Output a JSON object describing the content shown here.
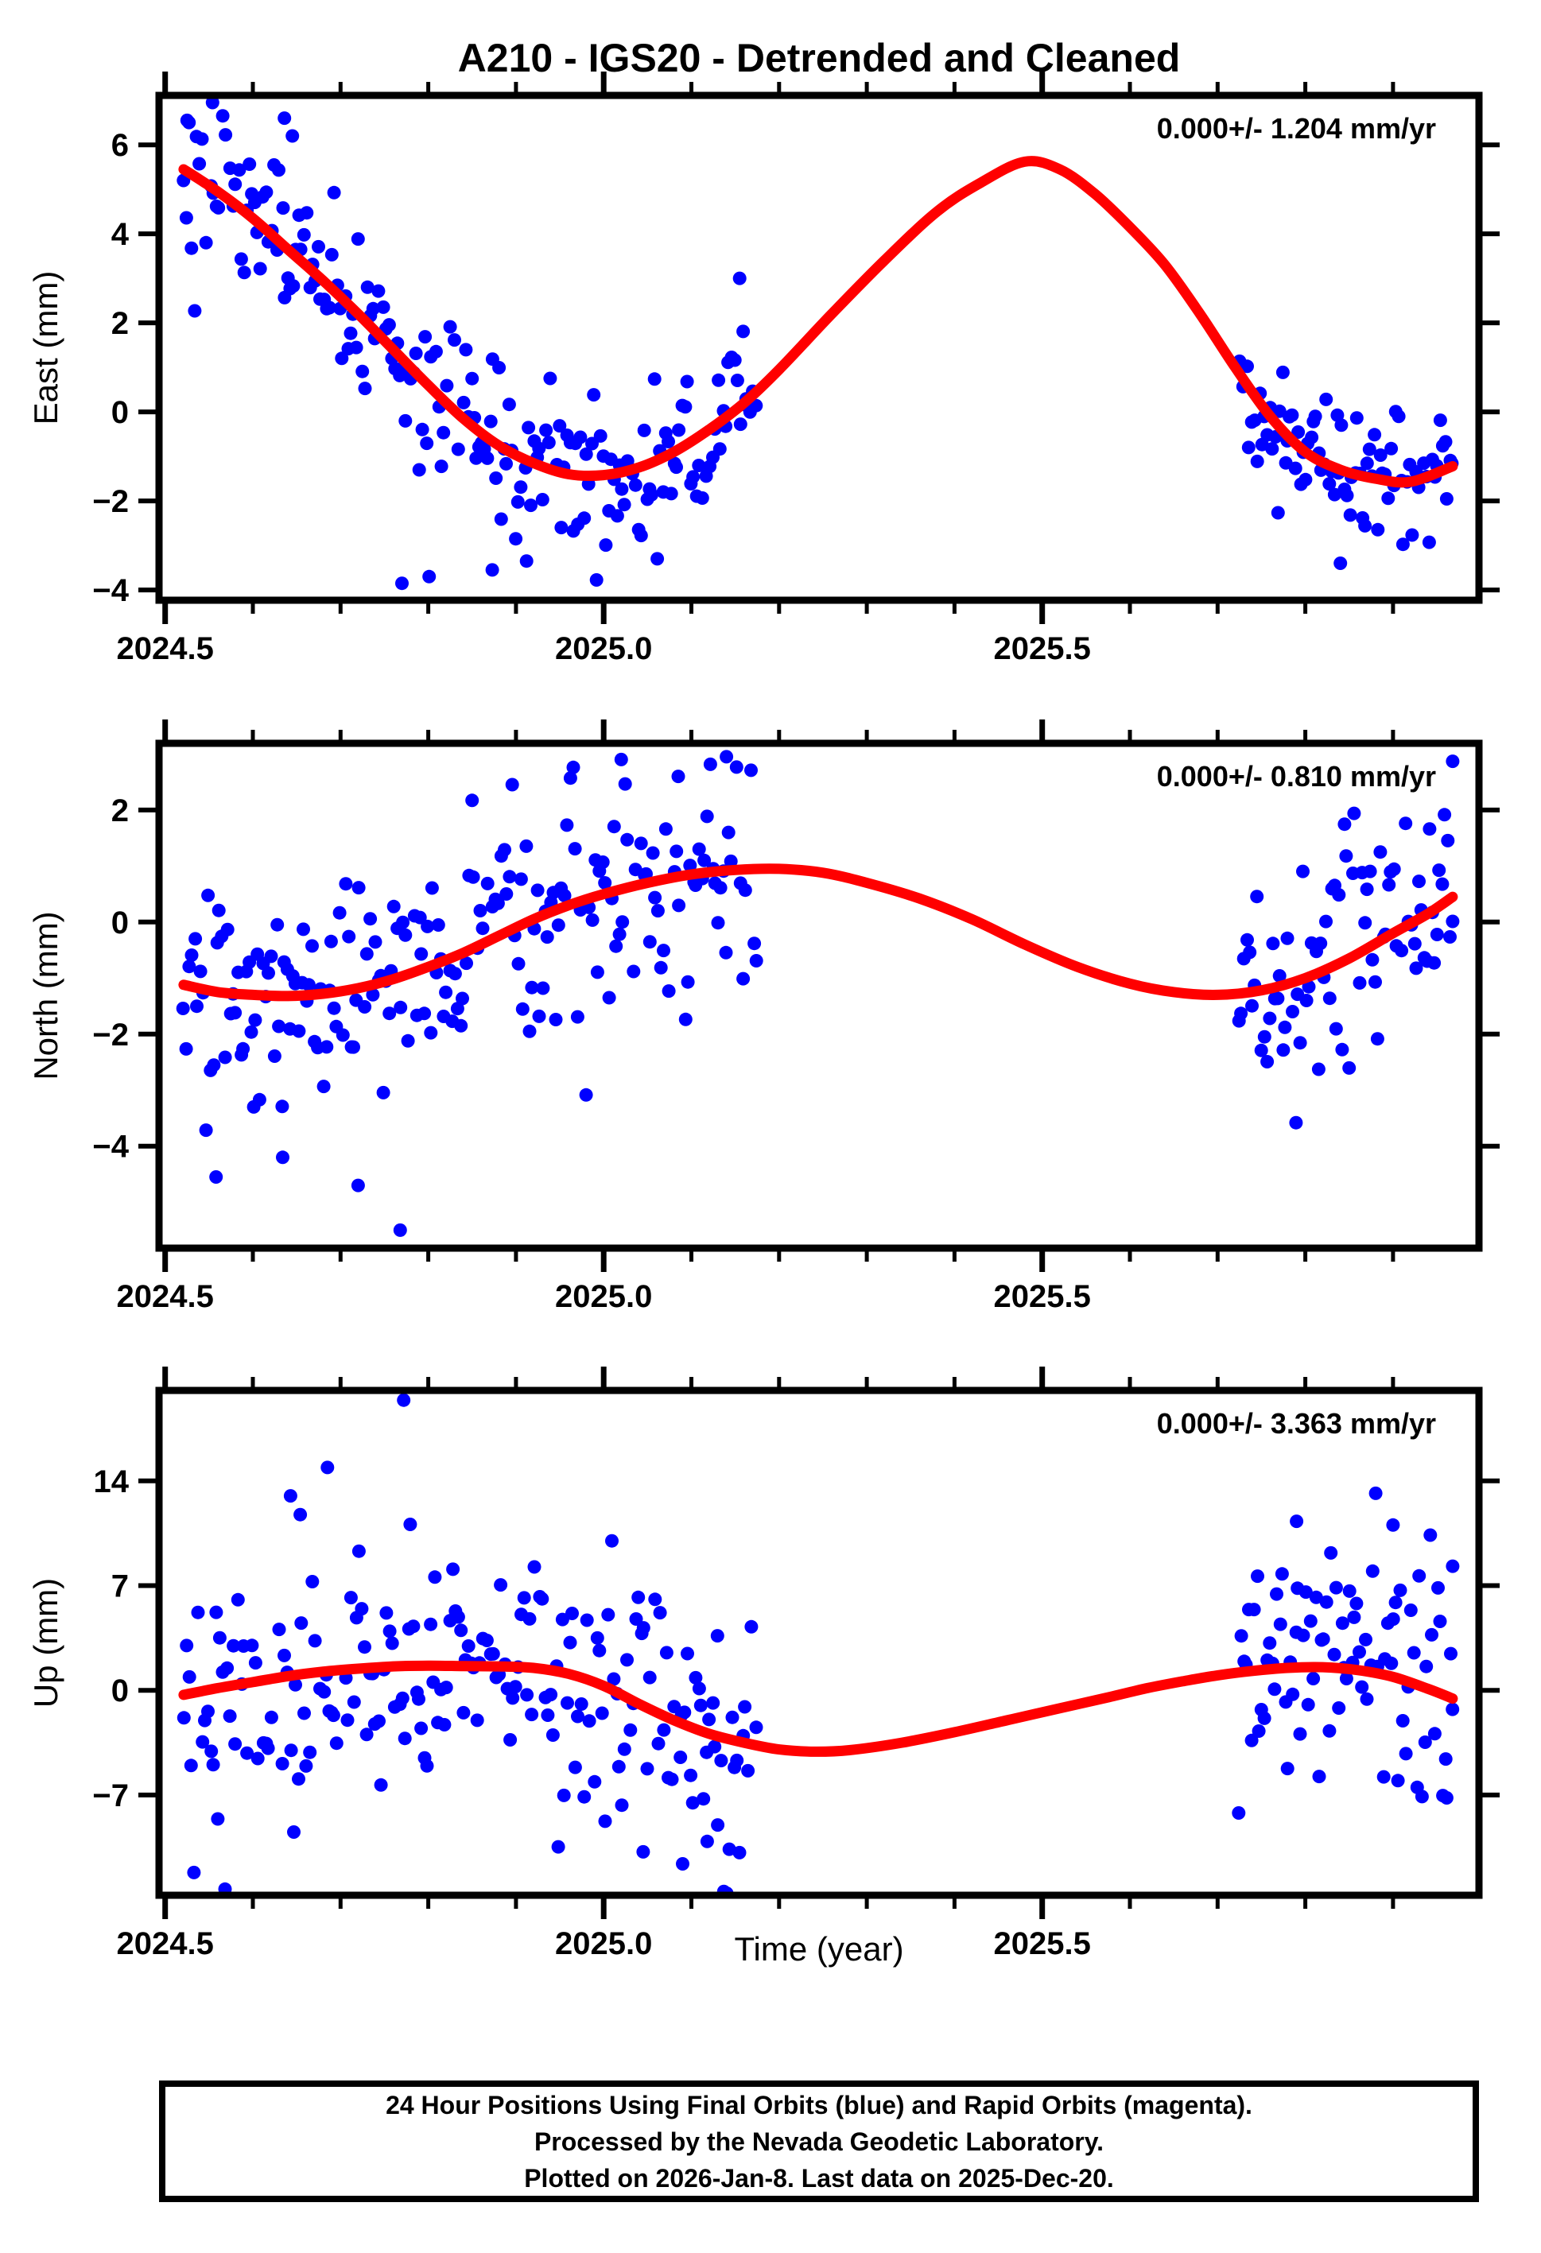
{
  "chart_data": {
    "type": "scatter",
    "title": "A210 - IGS20 - Detrended and Cleaned",
    "xlabel": "Time (year)",
    "colors": {
      "points": "#0000ff",
      "model_curve": "#ff0000",
      "frame": "#000000",
      "background": "#ffffff"
    },
    "marker": {
      "shape": "circle",
      "radius_px": 8.5
    },
    "x_axis": {
      "range": [
        2024.493,
        2025.998
      ],
      "major_ticks": [
        2024.5,
        2025.0,
        2025.5
      ],
      "tick_labels": [
        "2024.5",
        "2025.0",
        "2025.5"
      ],
      "minor_step": 0.1
    },
    "data_span": {
      "note": "daily 24-hour solutions; individual point values estimated from pixels",
      "clusters": [
        {
          "start": 2024.521,
          "end": 2025.174,
          "n_days": 210
        },
        {
          "start": 2025.724,
          "end": 2025.968,
          "n_days": 84
        }
      ],
      "gap": [
        2025.174,
        2025.724
      ],
      "last_data_epoch": 2025.968
    },
    "panels": [
      {
        "id": "east",
        "ylabel": "East (mm)",
        "annotation": "0.000+/- 1.204 mm/yr",
        "ylim": [
          -4.23,
          7.11
        ],
        "yticks": [
          -4,
          -2,
          0,
          2,
          4,
          6
        ],
        "scatter_sigma_mm": 0.92,
        "noise_seed": 42,
        "model_curve": [
          [
            2024.521,
            5.45
          ],
          [
            2024.56,
            4.95
          ],
          [
            2024.6,
            4.35
          ],
          [
            2024.64,
            3.65
          ],
          [
            2024.68,
            2.95
          ],
          [
            2024.72,
            2.2
          ],
          [
            2024.76,
            1.4
          ],
          [
            2024.8,
            0.6
          ],
          [
            2024.84,
            -0.15
          ],
          [
            2024.88,
            -0.75
          ],
          [
            2024.92,
            -1.15
          ],
          [
            2024.96,
            -1.4
          ],
          [
            2025.0,
            -1.42
          ],
          [
            2025.04,
            -1.25
          ],
          [
            2025.08,
            -0.9
          ],
          [
            2025.12,
            -0.4
          ],
          [
            2025.16,
            0.2
          ],
          [
            2025.2,
            0.95
          ],
          [
            2025.26,
            2.2
          ],
          [
            2025.32,
            3.4
          ],
          [
            2025.38,
            4.5
          ],
          [
            2025.43,
            5.15
          ],
          [
            2025.48,
            5.62
          ],
          [
            2025.52,
            5.45
          ],
          [
            2025.56,
            4.9
          ],
          [
            2025.6,
            4.15
          ],
          [
            2025.64,
            3.3
          ],
          [
            2025.68,
            2.2
          ],
          [
            2025.72,
            1.0
          ],
          [
            2025.76,
            -0.1
          ],
          [
            2025.8,
            -0.9
          ],
          [
            2025.84,
            -1.3
          ],
          [
            2025.88,
            -1.5
          ],
          [
            2025.92,
            -1.57
          ],
          [
            2025.968,
            -1.22
          ]
        ],
        "notable_points": [
          [
            2024.525,
            6.55
          ],
          [
            2024.554,
            6.95
          ],
          [
            2024.636,
            6.6
          ],
          [
            2024.645,
            6.2
          ],
          [
            2024.77,
            -3.85
          ],
          [
            2024.801,
            -3.7
          ],
          [
            2024.873,
            -3.55
          ],
          [
            2024.912,
            -3.35
          ],
          [
            2025.155,
            3.0
          ],
          [
            2025.84,
            -3.4
          ]
        ]
      },
      {
        "id": "north",
        "ylabel": "North (mm)",
        "annotation": "0.000+/- 0.810 mm/yr",
        "ylim": [
          -5.82,
          3.19
        ],
        "yticks": [
          -4,
          -2,
          0,
          2
        ],
        "scatter_sigma_mm": 1.05,
        "noise_seed": 1337,
        "model_curve": [
          [
            2024.521,
            -1.12
          ],
          [
            2024.56,
            -1.25
          ],
          [
            2024.6,
            -1.3
          ],
          [
            2024.64,
            -1.32
          ],
          [
            2024.68,
            -1.28
          ],
          [
            2024.72,
            -1.18
          ],
          [
            2024.76,
            -1.02
          ],
          [
            2024.8,
            -0.8
          ],
          [
            2024.84,
            -0.55
          ],
          [
            2024.88,
            -0.25
          ],
          [
            2024.92,
            0.05
          ],
          [
            2024.96,
            0.3
          ],
          [
            2025.0,
            0.5
          ],
          [
            2025.05,
            0.7
          ],
          [
            2025.1,
            0.85
          ],
          [
            2025.15,
            0.93
          ],
          [
            2025.2,
            0.95
          ],
          [
            2025.25,
            0.88
          ],
          [
            2025.3,
            0.7
          ],
          [
            2025.36,
            0.42
          ],
          [
            2025.42,
            0.05
          ],
          [
            2025.48,
            -0.4
          ],
          [
            2025.54,
            -0.8
          ],
          [
            2025.6,
            -1.1
          ],
          [
            2025.65,
            -1.25
          ],
          [
            2025.7,
            -1.3
          ],
          [
            2025.75,
            -1.22
          ],
          [
            2025.8,
            -1.0
          ],
          [
            2025.85,
            -0.65
          ],
          [
            2025.9,
            -0.2
          ],
          [
            2025.94,
            0.15
          ],
          [
            2025.968,
            0.45
          ]
        ],
        "notable_points": [
          [
            2024.558,
            -4.55
          ],
          [
            2024.601,
            -3.3
          ],
          [
            2024.634,
            -4.2
          ],
          [
            2024.72,
            -4.7
          ],
          [
            2024.768,
            -5.5
          ],
          [
            2025.02,
            2.9
          ],
          [
            2025.085,
            2.6
          ],
          [
            2025.14,
            2.95
          ],
          [
            2025.968,
            2.87
          ]
        ]
      },
      {
        "id": "up",
        "ylabel": "Up (mm)",
        "annotation": "0.000+/- 3.363 mm/yr",
        "ylim": [
          -13.7,
          20.05
        ],
        "yticks": [
          -7,
          0,
          7,
          14
        ],
        "scatter_sigma_mm": 4.2,
        "noise_seed": 2024,
        "model_curve": [
          [
            2024.521,
            -0.3
          ],
          [
            2024.56,
            0.15
          ],
          [
            2024.6,
            0.55
          ],
          [
            2024.64,
            0.95
          ],
          [
            2024.68,
            1.25
          ],
          [
            2024.72,
            1.45
          ],
          [
            2024.76,
            1.6
          ],
          [
            2024.8,
            1.65
          ],
          [
            2024.84,
            1.62
          ],
          [
            2024.88,
            1.6
          ],
          [
            2024.92,
            1.5
          ],
          [
            2024.96,
            1.1
          ],
          [
            2025.0,
            0.3
          ],
          [
            2025.04,
            -0.9
          ],
          [
            2025.08,
            -2.0
          ],
          [
            2025.12,
            -2.9
          ],
          [
            2025.16,
            -3.5
          ],
          [
            2025.2,
            -3.95
          ],
          [
            2025.24,
            -4.1
          ],
          [
            2025.28,
            -4.0
          ],
          [
            2025.34,
            -3.5
          ],
          [
            2025.4,
            -2.8
          ],
          [
            2025.46,
            -2.0
          ],
          [
            2025.52,
            -1.2
          ],
          [
            2025.58,
            -0.4
          ],
          [
            2025.62,
            0.15
          ],
          [
            2025.66,
            0.6
          ],
          [
            2025.7,
            1.0
          ],
          [
            2025.74,
            1.3
          ],
          [
            2025.78,
            1.5
          ],
          [
            2025.82,
            1.55
          ],
          [
            2025.86,
            1.35
          ],
          [
            2025.9,
            0.9
          ],
          [
            2025.94,
            0.1
          ],
          [
            2025.968,
            -0.55
          ]
        ],
        "notable_points": [
          [
            2024.56,
            -8.6
          ],
          [
            2024.643,
            13.0
          ],
          [
            2024.654,
            11.75
          ],
          [
            2024.685,
            14.9
          ],
          [
            2024.772,
            19.4
          ],
          [
            2025.045,
            -10.8
          ],
          [
            2025.09,
            -11.6
          ],
          [
            2025.118,
            -10.1
          ],
          [
            2025.13,
            -9.0
          ],
          [
            2025.79,
            11.3
          ],
          [
            2025.9,
            11.05
          ],
          [
            2025.968,
            8.3
          ]
        ]
      }
    ]
  },
  "footer": {
    "lines": [
      "24 Hour Positions Using Final Orbits (blue) and Rapid Orbits (magenta).",
      "Processed by the Nevada Geodetic Laboratory.",
      "Plotted on 2026-Jan-8. Last data on 2025-Dec-20."
    ]
  }
}
